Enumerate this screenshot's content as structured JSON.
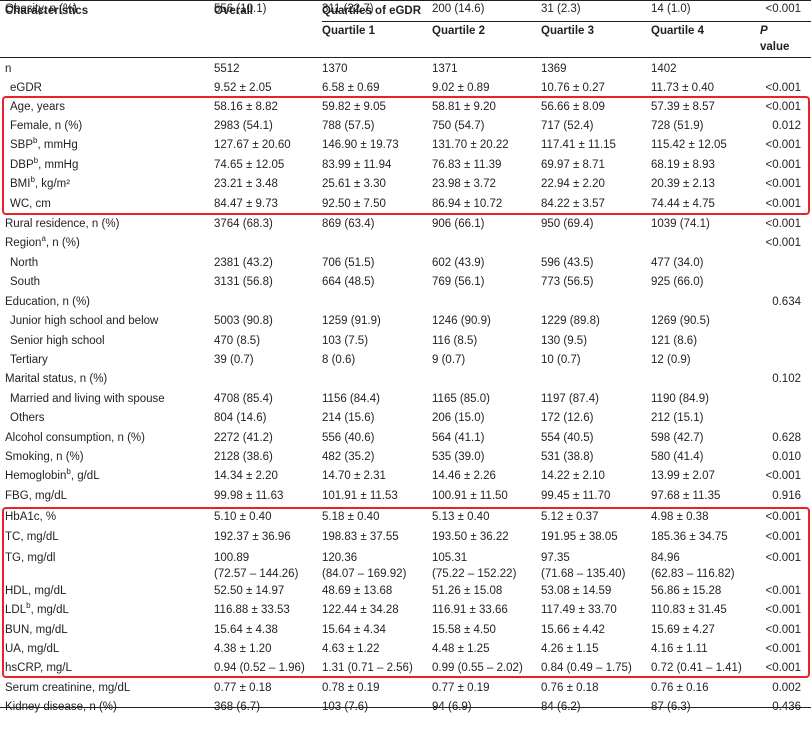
{
  "header": {
    "characteristics": "Characteristics",
    "overall": "Overall",
    "quartiles_title": "Quartiles of eGDR",
    "q1": "Quartile 1",
    "q2": "Quartile 2",
    "q3": "Quartile 3",
    "q4": "Quartile 4",
    "p_line1": "P",
    "p_line2": "value"
  },
  "rows": [
    {
      "label": "n",
      "overall": "5512",
      "q1": "1370",
      "q2": "1371",
      "q3": "1369",
      "q4": "1402",
      "p": ""
    },
    {
      "label": "eGDR",
      "overall": "9.52 ± 2.05",
      "q1": "6.58 ± 0.69",
      "q2": "9.02 ± 0.89",
      "q3": "10.76 ± 0.27",
      "q4": "11.73 ± 0.40",
      "p": "<0.001"
    },
    {
      "label": "Age, years",
      "overall": "58.16 ± 8.82",
      "q1": "59.82 ± 9.05",
      "q2": "58.81 ± 9.20",
      "q3": "56.66 ± 8.09",
      "q4": "57.39 ± 8.57",
      "p": "<0.001"
    },
    {
      "label": "Female, n (%)",
      "overall": "2983 (54.1)",
      "q1": "788 (57.5)",
      "q2": "750 (54.7)",
      "q3": "717 (52.4)",
      "q4": "728 (51.9)",
      "p": "0.012"
    },
    {
      "label": "SBP",
      "sup": "b",
      "label_rest": ", mmHg",
      "overall": "127.67 ± 20.60",
      "q1": "146.90 ± 19.73",
      "q2": "131.70 ± 20.22",
      "q3": "117.41 ± 11.15",
      "q4": "115.42 ± 12.05",
      "p": "<0.001"
    },
    {
      "label": "DBP",
      "sup": "b",
      "label_rest": ", mmHg",
      "overall": "74.65 ± 12.05",
      "q1": "83.99 ± 11.94",
      "q2": "76.83 ± 11.39",
      "q3": "69.97 ± 8.71",
      "q4": "68.19 ± 8.93",
      "p": "<0.001"
    },
    {
      "label": "BMI",
      "sup": "b",
      "label_rest": ", kg/m²",
      "overall": "23.21 ± 3.48",
      "q1": "25.61 ± 3.30",
      "q2": "23.98 ± 3.72",
      "q3": "22.94 ± 2.20",
      "q4": "20.39 ± 2.13",
      "p": "<0.001"
    },
    {
      "label": "WC, cm",
      "overall": "84.47 ± 9.73",
      "q1": "92.50 ± 7.50",
      "q2": "86.94 ± 10.72",
      "q3": "84.22 ± 3.57",
      "q4": "74.44 ± 4.75",
      "p": "<0.001"
    },
    {
      "label": "Rural residence, n (%)",
      "overall": "3764 (68.3)",
      "q1": "869 (63.4)",
      "q2": "906 (66.1)",
      "q3": "950 (69.4)",
      "q4": "1039 (74.1)",
      "p": "<0.001"
    },
    {
      "label": "Region",
      "sup": "a",
      "label_rest": ", n (%)",
      "overall": "",
      "q1": "",
      "q2": "",
      "q3": "",
      "q4": "",
      "p": "<0.001"
    },
    {
      "label": "North",
      "overall": "2381 (43.2)",
      "q1": "706 (51.5)",
      "q2": "602 (43.9)",
      "q3": "596 (43.5)",
      "q4": "477 (34.0)",
      "p": ""
    },
    {
      "label": "South",
      "overall": "3131 (56.8)",
      "q1": "664 (48.5)",
      "q2": "769 (56.1)",
      "q3": "773 (56.5)",
      "q4": "925 (66.0)",
      "p": ""
    },
    {
      "label": "Education, n (%)",
      "overall": "",
      "q1": "",
      "q2": "",
      "q3": "",
      "q4": "",
      "p": "0.634"
    },
    {
      "label": "Junior high school and below",
      "overall": "5003 (90.8)",
      "q1": "1259 (91.9)",
      "q2": "1246 (90.9)",
      "q3": "1229 (89.8)",
      "q4": "1269 (90.5)",
      "p": ""
    },
    {
      "label": "Senior high school",
      "overall": "470 (8.5)",
      "q1": "103 (7.5)",
      "q2": "116 (8.5)",
      "q3": "130 (9.5)",
      "q4": "121 (8.6)",
      "p": ""
    },
    {
      "label": "Tertiary",
      "overall": "39 (0.7)",
      "q1": "8 (0.6)",
      "q2": "9 (0.7)",
      "q3": "10 (0.7)",
      "q4": "12 (0.9)",
      "p": ""
    },
    {
      "label": "Marital status, n (%)",
      "overall": "",
      "q1": "",
      "q2": "",
      "q3": "",
      "q4": "",
      "p": "0.102"
    },
    {
      "label": "Married and living with spouse",
      "overall": "4708 (85.4)",
      "q1": "1156 (84.4)",
      "q2": "1165 (85.0)",
      "q3": "1197 (87.4)",
      "q4": "1190 (84.9)",
      "p": ""
    },
    {
      "label": "Others",
      "overall": "804 (14.6)",
      "q1": "214 (15.6)",
      "q2": "206 (15.0)",
      "q3": "172 (12.6)",
      "q4": "212 (15.1)",
      "p": ""
    },
    {
      "label": "Alcohol consumption, n (%)",
      "overall": "2272 (41.2)",
      "q1": "556 (40.6)",
      "q2": "564 (41.1)",
      "q3": "554 (40.5)",
      "q4": "598 (42.7)",
      "p": "0.628"
    },
    {
      "label": "Smoking, n (%)",
      "overall": "2128 (38.6)",
      "q1": "482 (35.2)",
      "q2": "535 (39.0)",
      "q3": "531 (38.8)",
      "q4": "580 (41.4)",
      "p": "0.010"
    },
    {
      "label": "Hemoglobin",
      "sup": "b",
      "label_rest": ", g/dL",
      "overall": "14.34 ± 2.20",
      "q1": "14.70 ± 2.31",
      "q2": "14.46 ± 2.26",
      "q3": "14.22 ± 2.10",
      "q4": "13.99 ± 2.07",
      "p": "<0.001"
    },
    {
      "label": "FBG, mg/dL",
      "overall": "99.98 ± 11.63",
      "q1": "101.91 ± 11.53",
      "q2": "100.91 ± 11.50",
      "q3": "99.45 ± 11.70",
      "q4": "97.68 ± 11.35",
      "p": "0.916"
    },
    {
      "label": "HbA1c, %",
      "overall": "5.10 ± 0.40",
      "q1": "5.18 ± 0.40",
      "q2": "5.13 ± 0.40",
      "q3": "5.12 ± 0.37",
      "q4": "4.98 ± 0.38",
      "p": "<0.001"
    },
    {
      "label": "TC, mg/dL",
      "overall": "192.37 ± 36.96",
      "q1": "198.83 ± 37.55",
      "q2": "193.50 ± 36.22",
      "q3": "191.95 ± 38.05",
      "q4": "185.36 ± 34.75",
      "p": "<0.001"
    },
    {
      "label": "TG, mg/dl",
      "overall": "100.89",
      "overall2": "(72.57 – 144.26)",
      "q1": "120.36",
      "q1b": "(84.07 – 169.92)",
      "q2": "105.31",
      "q2b": "(75.22 – 152.22)",
      "q3": "97.35",
      "q3b": "(71.68 – 135.40)",
      "q4": "84.96",
      "q4b": "(62.83 – 116.82)",
      "p": "<0.001"
    },
    {
      "label": "HDL, mg/dL",
      "overall": "52.50 ± 14.97",
      "q1": "48.69 ± 13.68",
      "q2": "51.26 ± 15.08",
      "q3": "53.08 ± 14.59",
      "q4": "56.86 ± 15.28",
      "p": "<0.001"
    },
    {
      "label": "LDL",
      "sup": "b",
      "label_rest": ", mg/dL",
      "overall": "116.88 ± 33.53",
      "q1": "122.44 ± 34.28",
      "q2": "116.91 ± 33.66",
      "q3": "117.49 ± 33.70",
      "q4": "110.83 ± 31.45",
      "p": "<0.001"
    },
    {
      "label": "BUN, mg/dL",
      "overall": "15.64 ± 4.38",
      "q1": "15.64 ± 4.34",
      "q2": "15.58 ± 4.50",
      "q3": "15.66 ± 4.42",
      "q4": "15.69 ± 4.27",
      "p": "<0.001"
    },
    {
      "label": "UA, mg/dL",
      "overall": "4.38 ± 1.20",
      "q1": "4.63 ± 1.22",
      "q2": "4.48 ± 1.25",
      "q3": "4.26 ± 1.15",
      "q4": "4.16 ± 1.11",
      "p": "<0.001"
    },
    {
      "label": "hsCRP, mg/L",
      "overall": "0.94 (0.52 – 1.96)",
      "q1": "1.31 (0.71 – 2.56)",
      "q2": "0.99 (0.55 – 2.02)",
      "q3": "0.84 (0.49 – 1.75)",
      "q4": "0.72 (0.41 – 1.41)",
      "p": "<0.001"
    },
    {
      "label": "Serum creatinine, mg/dL",
      "overall": "0.77 ± 0.18",
      "q1": "0.78 ± 0.19",
      "q2": "0.77 ± 0.19",
      "q3": "0.76 ± 0.18",
      "q4": "0.76 ± 0.16",
      "p": "0.002"
    },
    {
      "label": "Kidney disease, n (%)",
      "overall": "368 (6.7)",
      "q1": "103 (7.6)",
      "q2": "94 (6.9)",
      "q3": "84 (6.2)",
      "q4": "87 (6.3)",
      "p": "0.436"
    },
    {
      "label": "Obesity, n (%)",
      "overall": "556 (10.1)",
      "q1": "311 (22.7)",
      "q2": "200 (14.6)",
      "q3": "31 (2.3)",
      "q4": "14 (1.0)",
      "p": "<0.001"
    }
  ],
  "highlight_color": "#e8212b"
}
